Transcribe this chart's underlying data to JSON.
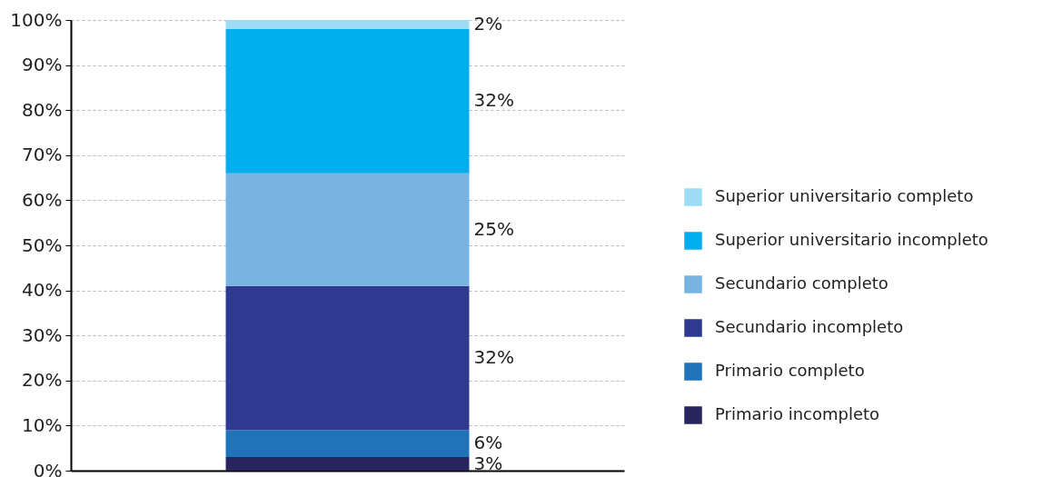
{
  "chart_data": {
    "type": "bar",
    "stacked": true,
    "categories": [
      null
    ],
    "series": [
      {
        "name": "Primario incompleto",
        "color": "#27245e",
        "values": [
          3
        ]
      },
      {
        "name": "Primario completo",
        "color": "#1f73b8",
        "values": [
          6
        ]
      },
      {
        "name": "Secundario incompleto",
        "color": "#2e3a8f",
        "values": [
          32
        ]
      },
      {
        "name": "Secundario completo",
        "color": "#78b4e2",
        "values": [
          25
        ]
      },
      {
        "name": "Superior universitario incompleto",
        "color": "#00adef",
        "values": [
          32
        ]
      },
      {
        "name": "Superior universitario completo",
        "color": "#9ddcf5",
        "values": [
          2
        ]
      }
    ],
    "value_labels": [
      [
        "3%"
      ],
      [
        "6%"
      ],
      [
        "32%"
      ],
      [
        "25%"
      ],
      [
        "32%"
      ],
      [
        "2%"
      ]
    ],
    "ylim": [
      0,
      100
    ],
    "yticks": [
      {
        "value": 0,
        "label": "0%"
      },
      {
        "value": 10,
        "label": "10%"
      },
      {
        "value": 20,
        "label": "20%"
      },
      {
        "value": 30,
        "label": "30%"
      },
      {
        "value": 40,
        "label": "40%"
      },
      {
        "value": 50,
        "label": "50%"
      },
      {
        "value": 60,
        "label": "60%"
      },
      {
        "value": 70,
        "label": "70%"
      },
      {
        "value": 80,
        "label": "80%"
      },
      {
        "value": 90,
        "label": "90%"
      },
      {
        "value": 100,
        "label": "100%"
      }
    ],
    "grid": "y",
    "legend": "right",
    "tick_labels": "y"
  }
}
